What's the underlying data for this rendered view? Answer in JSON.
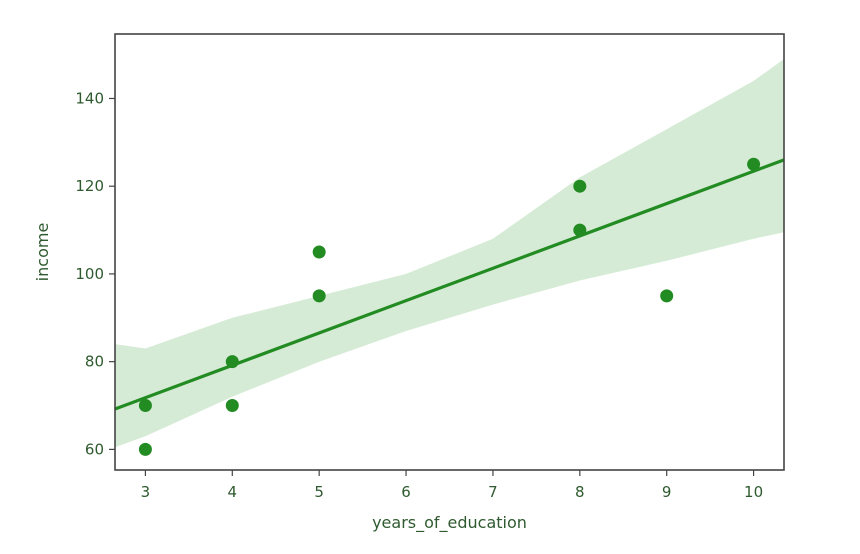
{
  "chart_data": {
    "type": "scatter",
    "xlabel": "years_of_education",
    "ylabel": "income",
    "xlim": [
      2.65,
      10.35
    ],
    "ylim": [
      55.3,
      154.7
    ],
    "x_ticks": [
      3,
      4,
      5,
      6,
      7,
      8,
      9,
      10
    ],
    "y_ticks": [
      60,
      80,
      100,
      120,
      140
    ],
    "grid": false,
    "legend": "none",
    "points": [
      {
        "x": 3,
        "y": 70
      },
      {
        "x": 3,
        "y": 60
      },
      {
        "x": 4,
        "y": 80
      },
      {
        "x": 4,
        "y": 70
      },
      {
        "x": 5,
        "y": 105
      },
      {
        "x": 5,
        "y": 95
      },
      {
        "x": 8,
        "y": 120
      },
      {
        "x": 8,
        "y": 110
      },
      {
        "x": 9,
        "y": 95
      },
      {
        "x": 10,
        "y": 125
      }
    ],
    "regression_line": {
      "x": [
        2.65,
        10.35
      ],
      "y": [
        69.2,
        126.0
      ]
    },
    "confidence_band": {
      "x": [
        2.65,
        3,
        4,
        5,
        6,
        7,
        8,
        9,
        10,
        10.35
      ],
      "lower": [
        60.5,
        63.0,
        72.0,
        80.0,
        87.0,
        93.0,
        98.5,
        103.0,
        108.0,
        109.5
      ],
      "upper": [
        84.0,
        83.0,
        90.0,
        95.0,
        100.0,
        108.0,
        122.0,
        133.0,
        144.0,
        149.0
      ]
    },
    "colors": {
      "points": "#228b22",
      "line": "#228b22",
      "band": "#cfe8cf",
      "axes": "#444444",
      "text": "#2f5a2f"
    }
  }
}
